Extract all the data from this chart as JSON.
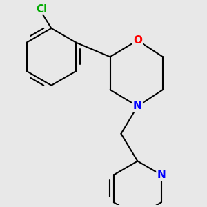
{
  "background_color": "#e8e8e8",
  "bond_color": "#000000",
  "atom_colors": {
    "Cl": "#00aa00",
    "O": "#ff0000",
    "N": "#0000ff"
  },
  "bond_width": 1.5,
  "font_size": 10
}
